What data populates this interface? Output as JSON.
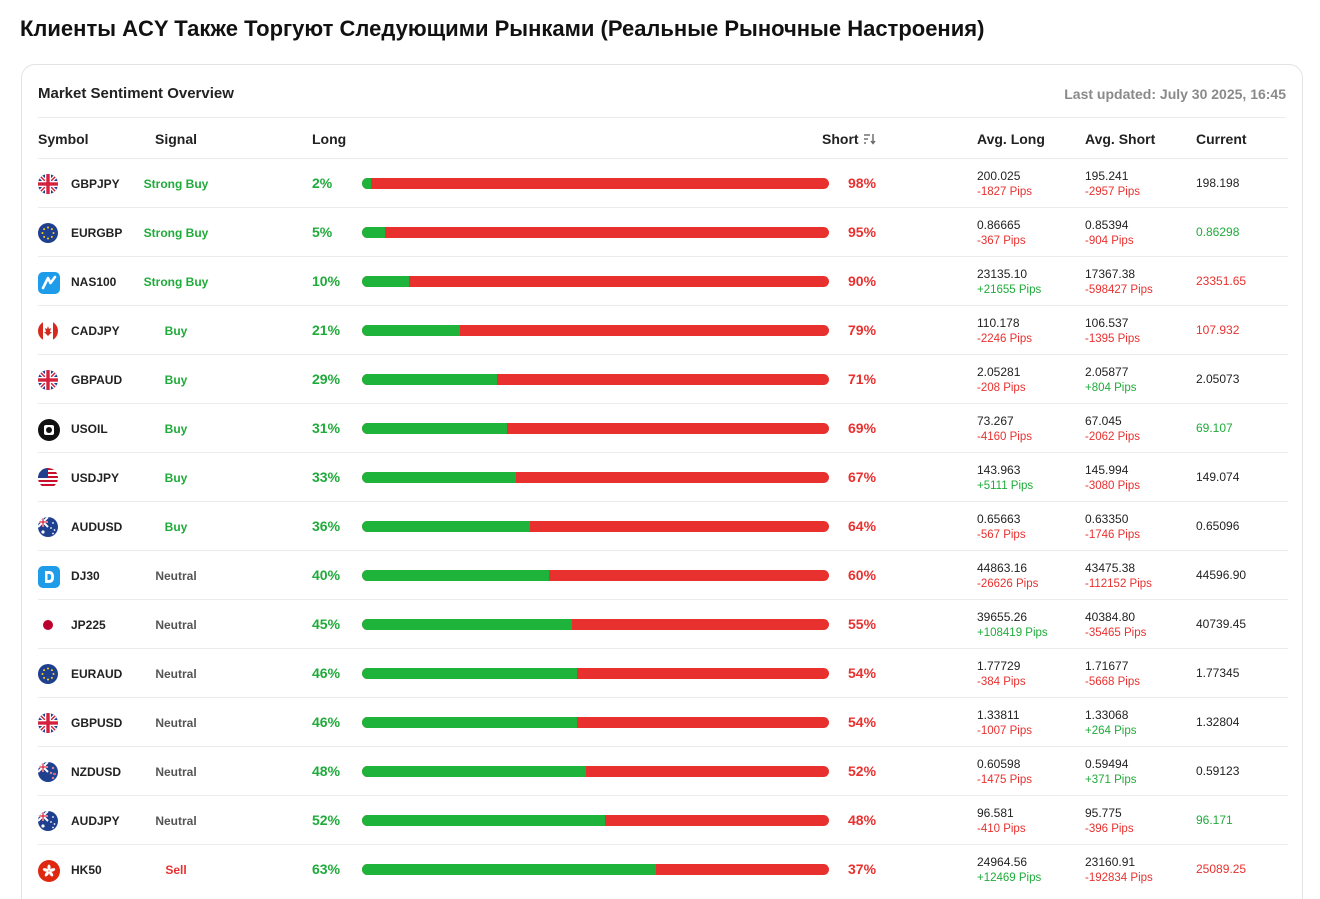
{
  "page": {
    "title": "Клиенты ACY Также Торгуют Следующими Рынками (Реальные Рыночные Настроения)"
  },
  "card": {
    "title": "Market Sentiment Overview",
    "last_updated": "Last updated: July 30 2025, 16:45"
  },
  "headers": {
    "symbol": "Symbol",
    "signal": "Signal",
    "long": "Long",
    "short": "Short",
    "avg_long": "Avg. Long",
    "avg_short": "Avg. Short",
    "current": "Current"
  },
  "colors": {
    "long_green": "#1eb43c",
    "short_red": "#e8312f",
    "neutral_gray": "#555555"
  },
  "rows": [
    {
      "symbol": "GBPJPY",
      "icon": "uk-flag-icon",
      "signal": "Strong Buy",
      "signal_tone": "green",
      "long_pct": "2%",
      "short_pct": "98%",
      "long_fraction": 0.02,
      "avg_long": "200.025",
      "avg_long_pips": "-1827 Pips",
      "avg_long_tone": "red",
      "avg_short": "195.241",
      "avg_short_pips": "-2957 Pips",
      "avg_short_tone": "red",
      "current": "198.198",
      "current_tone": "dark"
    },
    {
      "symbol": "EURGBP",
      "icon": "eu-flag-icon",
      "signal": "Strong Buy",
      "signal_tone": "green",
      "long_pct": "5%",
      "short_pct": "95%",
      "long_fraction": 0.05,
      "avg_long": "0.86665",
      "avg_long_pips": "-367 Pips",
      "avg_long_tone": "red",
      "avg_short": "0.85394",
      "avg_short_pips": "-904 Pips",
      "avg_short_tone": "red",
      "current": "0.86298",
      "current_tone": "green"
    },
    {
      "symbol": "NAS100",
      "icon": "nasdaq-icon",
      "signal": "Strong Buy",
      "signal_tone": "green",
      "long_pct": "10%",
      "short_pct": "90%",
      "long_fraction": 0.1,
      "avg_long": "23135.10",
      "avg_long_pips": "+21655 Pips",
      "avg_long_tone": "green",
      "avg_short": "17367.38",
      "avg_short_pips": "-598427 Pips",
      "avg_short_tone": "red",
      "current": "23351.65",
      "current_tone": "red"
    },
    {
      "symbol": "CADJPY",
      "icon": "canada-flag-icon",
      "signal": "Buy",
      "signal_tone": "green",
      "long_pct": "21%",
      "short_pct": "79%",
      "long_fraction": 0.21,
      "avg_long": "110.178",
      "avg_long_pips": "-2246 Pips",
      "avg_long_tone": "red",
      "avg_short": "106.537",
      "avg_short_pips": "-1395 Pips",
      "avg_short_tone": "red",
      "current": "107.932",
      "current_tone": "red"
    },
    {
      "symbol": "GBPAUD",
      "icon": "uk-flag-icon",
      "signal": "Buy",
      "signal_tone": "green",
      "long_pct": "29%",
      "short_pct": "71%",
      "long_fraction": 0.29,
      "avg_long": "2.05281",
      "avg_long_pips": "-208 Pips",
      "avg_long_tone": "red",
      "avg_short": "2.05877",
      "avg_short_pips": "+804 Pips",
      "avg_short_tone": "green",
      "current": "2.05073",
      "current_tone": "dark"
    },
    {
      "symbol": "USOIL",
      "icon": "oil-icon",
      "signal": "Buy",
      "signal_tone": "green",
      "long_pct": "31%",
      "short_pct": "69%",
      "long_fraction": 0.31,
      "avg_long": "73.267",
      "avg_long_pips": "-4160 Pips",
      "avg_long_tone": "red",
      "avg_short": "67.045",
      "avg_short_pips": "-2062 Pips",
      "avg_short_tone": "red",
      "current": "69.107",
      "current_tone": "green"
    },
    {
      "symbol": "USDJPY",
      "icon": "us-flag-icon",
      "signal": "Buy",
      "signal_tone": "green",
      "long_pct": "33%",
      "short_pct": "67%",
      "long_fraction": 0.33,
      "avg_long": "143.963",
      "avg_long_pips": "+5111 Pips",
      "avg_long_tone": "green",
      "avg_short": "145.994",
      "avg_short_pips": "-3080 Pips",
      "avg_short_tone": "red",
      "current": "149.074",
      "current_tone": "dark"
    },
    {
      "symbol": "AUDUSD",
      "icon": "australia-flag-icon",
      "signal": "Buy",
      "signal_tone": "green",
      "long_pct": "36%",
      "short_pct": "64%",
      "long_fraction": 0.36,
      "avg_long": "0.65663",
      "avg_long_pips": "-567 Pips",
      "avg_long_tone": "red",
      "avg_short": "0.63350",
      "avg_short_pips": "-1746 Pips",
      "avg_short_tone": "red",
      "current": "0.65096",
      "current_tone": "dark"
    },
    {
      "symbol": "DJ30",
      "icon": "dow-jones-icon",
      "signal": "Neutral",
      "signal_tone": "gray",
      "long_pct": "40%",
      "short_pct": "60%",
      "long_fraction": 0.4,
      "avg_long": "44863.16",
      "avg_long_pips": "-26626 Pips",
      "avg_long_tone": "red",
      "avg_short": "43475.38",
      "avg_short_pips": "-112152 Pips",
      "avg_short_tone": "red",
      "current": "44596.90",
      "current_tone": "dark"
    },
    {
      "symbol": "JP225",
      "icon": "japan-flag-icon",
      "signal": "Neutral",
      "signal_tone": "gray",
      "long_pct": "45%",
      "short_pct": "55%",
      "long_fraction": 0.45,
      "avg_long": "39655.26",
      "avg_long_pips": "+108419 Pips",
      "avg_long_tone": "green",
      "avg_short": "40384.80",
      "avg_short_pips": "-35465 Pips",
      "avg_short_tone": "red",
      "current": "40739.45",
      "current_tone": "dark"
    },
    {
      "symbol": "EURAUD",
      "icon": "eu-flag-icon",
      "signal": "Neutral",
      "signal_tone": "gray",
      "long_pct": "46%",
      "short_pct": "54%",
      "long_fraction": 0.46,
      "avg_long": "1.77729",
      "avg_long_pips": "-384 Pips",
      "avg_long_tone": "red",
      "avg_short": "1.71677",
      "avg_short_pips": "-5668 Pips",
      "avg_short_tone": "red",
      "current": "1.77345",
      "current_tone": "dark"
    },
    {
      "symbol": "GBPUSD",
      "icon": "uk-flag-icon",
      "signal": "Neutral",
      "signal_tone": "gray",
      "long_pct": "46%",
      "short_pct": "54%",
      "long_fraction": 0.46,
      "avg_long": "1.33811",
      "avg_long_pips": "-1007 Pips",
      "avg_long_tone": "red",
      "avg_short": "1.33068",
      "avg_short_pips": "+264 Pips",
      "avg_short_tone": "green",
      "current": "1.32804",
      "current_tone": "dark"
    },
    {
      "symbol": "NZDUSD",
      "icon": "new-zealand-flag-icon",
      "signal": "Neutral",
      "signal_tone": "gray",
      "long_pct": "48%",
      "short_pct": "52%",
      "long_fraction": 0.48,
      "avg_long": "0.60598",
      "avg_long_pips": "-1475 Pips",
      "avg_long_tone": "red",
      "avg_short": "0.59494",
      "avg_short_pips": "+371 Pips",
      "avg_short_tone": "green",
      "current": "0.59123",
      "current_tone": "dark"
    },
    {
      "symbol": "AUDJPY",
      "icon": "australia-flag-icon",
      "signal": "Neutral",
      "signal_tone": "gray",
      "long_pct": "52%",
      "short_pct": "48%",
      "long_fraction": 0.52,
      "avg_long": "96.581",
      "avg_long_pips": "-410 Pips",
      "avg_long_tone": "red",
      "avg_short": "95.775",
      "avg_short_pips": "-396 Pips",
      "avg_short_tone": "red",
      "current": "96.171",
      "current_tone": "green"
    },
    {
      "symbol": "HK50",
      "icon": "hong-kong-flag-icon",
      "signal": "Sell",
      "signal_tone": "red",
      "long_pct": "63%",
      "short_pct": "37%",
      "long_fraction": 0.63,
      "avg_long": "24964.56",
      "avg_long_pips": "+12469 Pips",
      "avg_long_tone": "green",
      "avg_short": "23160.91",
      "avg_short_pips": "-192834 Pips",
      "avg_short_tone": "red",
      "current": "25089.25",
      "current_tone": "red"
    }
  ]
}
